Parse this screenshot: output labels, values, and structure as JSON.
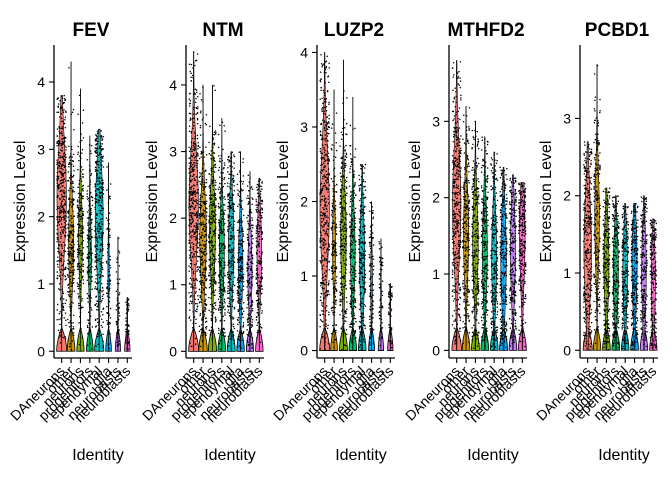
{
  "chart_data": [
    {
      "type": "violin",
      "title": "FEV",
      "xlabel": "Identity",
      "ylabel": "Expression Level",
      "ylim": [
        -0.1,
        4.55
      ],
      "yticks": [
        0,
        1,
        2,
        3,
        4
      ],
      "categories": [
        "DAneurons",
        "other",
        "neurons",
        "progenitors",
        "ependymal",
        "glia",
        "neurobasts",
        "neuroblasts"
      ],
      "series": [
        {
          "median": 2.3,
          "max": 3.8,
          "spread": 1.0,
          "density": 1.0,
          "baseline": 0.35
        },
        {
          "median": 1.6,
          "max": 4.3,
          "spread": 0.55,
          "density": 0.55,
          "baseline": 0.2
        },
        {
          "median": 1.7,
          "max": 3.9,
          "spread": 0.45,
          "density": 0.45,
          "baseline": 0.2
        },
        {
          "median": 1.4,
          "max": 3.2,
          "spread": 0.35,
          "density": 0.35,
          "baseline": 0.2
        },
        {
          "median": 2.0,
          "max": 3.3,
          "spread": 0.9,
          "density": 0.85,
          "baseline": 0.35
        },
        {
          "median": 1.2,
          "max": 2.8,
          "spread": 0.2,
          "density": 0.15,
          "baseline": 0.05
        },
        {
          "median": 0.5,
          "max": 1.7,
          "spread": 0.1,
          "density": 0.05,
          "baseline": 0.02
        },
        {
          "median": 0.4,
          "max": 0.8,
          "spread": 0.08,
          "density": 0.04,
          "baseline": 0.02
        }
      ]
    },
    {
      "type": "violin",
      "title": "NTM",
      "xlabel": "Identity",
      "ylabel": "Expression Level",
      "ylim": [
        -0.1,
        4.6
      ],
      "yticks": [
        0,
        1,
        2,
        3,
        4
      ],
      "categories": [
        "DAneurons",
        "other",
        "neurons",
        "progenitors",
        "ependymal",
        "glia",
        "neurobasts",
        "neuroblasts"
      ],
      "series": [
        {
          "median": 2.2,
          "max": 4.5,
          "spread": 1.0,
          "density": 1.0,
          "baseline": 0.3
        },
        {
          "median": 1.7,
          "max": 4.0,
          "spread": 0.7,
          "density": 0.7,
          "baseline": 0.4
        },
        {
          "median": 1.8,
          "max": 4.0,
          "spread": 0.65,
          "density": 0.65,
          "baseline": 0.25
        },
        {
          "median": 1.5,
          "max": 3.5,
          "spread": 0.5,
          "density": 0.55,
          "baseline": 0.25
        },
        {
          "median": 1.6,
          "max": 3.0,
          "spread": 0.6,
          "density": 0.6,
          "baseline": 0.3
        },
        {
          "median": 1.3,
          "max": 3.0,
          "spread": 0.45,
          "density": 0.5,
          "baseline": 0.4
        },
        {
          "median": 1.2,
          "max": 2.7,
          "spread": 0.45,
          "density": 0.45,
          "baseline": 0.35
        },
        {
          "median": 1.5,
          "max": 2.6,
          "spread": 0.5,
          "density": 0.5,
          "baseline": 0.3
        }
      ]
    },
    {
      "type": "violin",
      "title": "LUZP2",
      "xlabel": "Identity",
      "ylabel": "Expression Level",
      "ylim": [
        -0.1,
        4.1
      ],
      "yticks": [
        0,
        1,
        2,
        3,
        4
      ],
      "categories": [
        "DAneurons",
        "other",
        "neurons",
        "progenitors",
        "ependymal",
        "glia",
        "neurobasts",
        "neuroblasts"
      ],
      "series": [
        {
          "median": 1.9,
          "max": 4.0,
          "spread": 1.0,
          "density": 1.0,
          "baseline": 0.35
        },
        {
          "median": 1.4,
          "max": 3.5,
          "spread": 0.3,
          "density": 0.35,
          "baseline": 0.1
        },
        {
          "median": 1.5,
          "max": 3.9,
          "spread": 0.6,
          "density": 0.6,
          "baseline": 0.15
        },
        {
          "median": 1.3,
          "max": 3.4,
          "spread": 0.45,
          "density": 0.5,
          "baseline": 0.2
        },
        {
          "median": 1.2,
          "max": 2.5,
          "spread": 0.55,
          "density": 0.55,
          "baseline": 0.35
        },
        {
          "median": 0.9,
          "max": 2.0,
          "spread": 0.2,
          "density": 0.2,
          "baseline": 0.05
        },
        {
          "median": 0.7,
          "max": 1.5,
          "spread": 0.1,
          "density": 0.08,
          "baseline": 0.03
        },
        {
          "median": 0.5,
          "max": 0.9,
          "spread": 0.08,
          "density": 0.05,
          "baseline": 0.02
        }
      ]
    },
    {
      "type": "violin",
      "title": "MTHFD2",
      "xlabel": "Identity",
      "ylabel": "Expression Level",
      "ylim": [
        -0.1,
        4.0
      ],
      "yticks": [
        0,
        1,
        2,
        3
      ],
      "categories": [
        "DAneurons",
        "other",
        "neurons",
        "progenitors",
        "ependymal",
        "glia",
        "neurobasts",
        "neuroblasts"
      ],
      "series": [
        {
          "median": 1.9,
          "max": 3.8,
          "spread": 0.9,
          "density": 0.9,
          "baseline": 0.25
        },
        {
          "median": 1.5,
          "max": 3.2,
          "spread": 0.55,
          "density": 0.55,
          "baseline": 0.2
        },
        {
          "median": 1.4,
          "max": 3.0,
          "spread": 0.55,
          "density": 0.6,
          "baseline": 0.25
        },
        {
          "median": 1.3,
          "max": 2.8,
          "spread": 0.5,
          "density": 0.55,
          "baseline": 0.3
        },
        {
          "median": 1.2,
          "max": 2.6,
          "spread": 0.5,
          "density": 0.55,
          "baseline": 0.3
        },
        {
          "median": 1.2,
          "max": 2.4,
          "spread": 0.6,
          "density": 0.6,
          "baseline": 0.35
        },
        {
          "median": 1.3,
          "max": 2.3,
          "spread": 0.55,
          "density": 0.55,
          "baseline": 0.3
        },
        {
          "median": 1.5,
          "max": 2.2,
          "spread": 0.6,
          "density": 0.6,
          "baseline": 0.3
        }
      ]
    },
    {
      "type": "violin",
      "title": "PCBD1",
      "xlabel": "Identity",
      "ylabel": "Expression Level",
      "ylim": [
        -0.1,
        3.95
      ],
      "yticks": [
        0,
        1,
        2,
        3
      ],
      "categories": [
        "DAneurons",
        "other",
        "neurons",
        "progenitors",
        "ependymal",
        "glia",
        "neurobasts",
        "neuroblasts"
      ],
      "series": [
        {
          "median": 1.3,
          "max": 2.7,
          "spread": 0.8,
          "density": 0.8,
          "baseline": 0.25
        },
        {
          "median": 1.7,
          "max": 3.7,
          "spread": 0.6,
          "density": 0.5,
          "baseline": 0.15
        },
        {
          "median": 1.1,
          "max": 2.1,
          "spread": 0.45,
          "density": 0.55,
          "baseline": 0.2
        },
        {
          "median": 1.0,
          "max": 2.0,
          "spread": 0.4,
          "density": 0.55,
          "baseline": 0.2
        },
        {
          "median": 1.0,
          "max": 1.9,
          "spread": 0.4,
          "density": 0.5,
          "baseline": 0.25
        },
        {
          "median": 1.1,
          "max": 1.9,
          "spread": 0.5,
          "density": 0.55,
          "baseline": 0.3
        },
        {
          "median": 1.0,
          "max": 2.0,
          "spread": 0.45,
          "density": 0.5,
          "baseline": 0.25
        },
        {
          "median": 0.9,
          "max": 1.7,
          "spread": 0.4,
          "density": 0.45,
          "baseline": 0.25
        }
      ]
    }
  ],
  "colors": [
    "#F8766D",
    "#CD9600",
    "#7CAE00",
    "#00BE67",
    "#00BFC4",
    "#00A9FF",
    "#C77CFF",
    "#FF61CC"
  ],
  "point_color": "#000000",
  "axis_color": "#000000"
}
